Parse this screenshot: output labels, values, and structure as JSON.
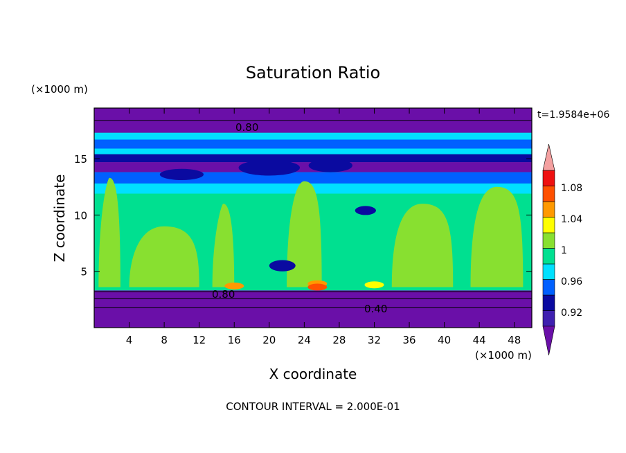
{
  "chart_data": {
    "type": "heatmap",
    "title": "Saturation Ratio",
    "xlabel": "X coordinate",
    "ylabel": "Z coordinate",
    "x_unit": "(×1000 m)",
    "y_unit": "(×1000 m)",
    "xlim": [
      0,
      50
    ],
    "ylim": [
      0,
      19.5
    ],
    "x_ticks": [
      "4",
      "8",
      "12",
      "16",
      "20",
      "24",
      "28",
      "32",
      "36",
      "40",
      "44",
      "48"
    ],
    "y_ticks": [
      "5",
      "10",
      "15"
    ],
    "time_label": "t=1.9584e+06",
    "footer": "CONTOUR INTERVAL = 2.000E-01",
    "contour_labels": [
      "0.80",
      "0.80",
      "0.40"
    ],
    "colorbar": {
      "tick_labels": [
        "1.08",
        "1.04",
        "1",
        "0.96",
        "0.92"
      ],
      "colors": [
        "#6a0fa8",
        "#3f20b0",
        "#0a0aa0",
        "#0060ff",
        "#00e0ff",
        "#00e090",
        "#88e030",
        "#ffff00",
        "#ff9900",
        "#ff5000",
        "#ee1010",
        "#f4a0a0"
      ]
    }
  }
}
